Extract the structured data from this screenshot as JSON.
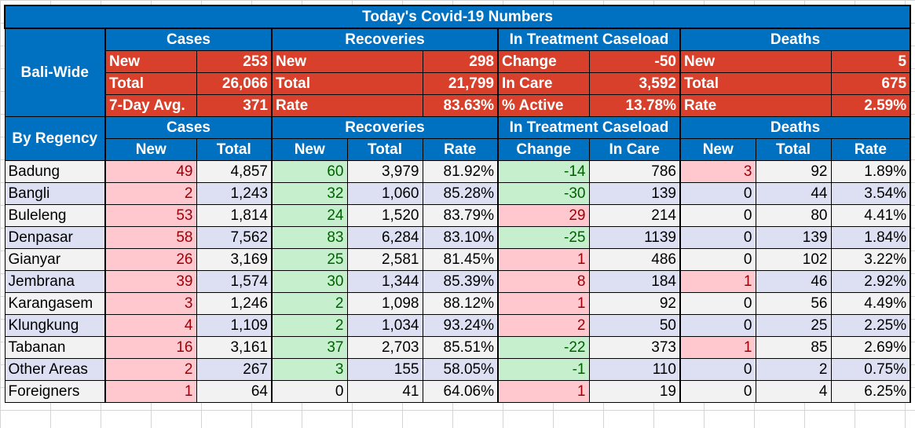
{
  "title": "Today's Covid-19 Numbers",
  "bali_wide": {
    "label": "Bali-Wide",
    "groups": [
      "Cases",
      "Recoveries",
      "In Treatment Caseload",
      "Deaths"
    ],
    "rows": [
      [
        "New",
        "253",
        "New",
        "298",
        "Change",
        "-50",
        "New",
        "5"
      ],
      [
        "Total",
        "26,066",
        "Total",
        "21,799",
        "In Care",
        "3,592",
        "Total",
        "675"
      ],
      [
        "7-Day Avg.",
        "371",
        "Rate",
        "83.63%",
        "% Active",
        "13.78%",
        "Rate",
        "2.59%"
      ]
    ]
  },
  "by_regency": {
    "label": "By Regency",
    "groups": [
      "Cases",
      "Recoveries",
      "In Treatment Caseload",
      "Deaths"
    ],
    "columns": [
      "New",
      "Total",
      "New",
      "Total",
      "Rate",
      "Change",
      "In Care",
      "New",
      "Total",
      "Rate"
    ],
    "rows": [
      [
        "Badung",
        "49",
        "4,857",
        "60",
        "3,979",
        "81.92%",
        "-14",
        "786",
        "3",
        "92",
        "1.89%"
      ],
      [
        "Bangli",
        "2",
        "1,243",
        "32",
        "1,060",
        "85.28%",
        "-30",
        "139",
        "0",
        "44",
        "3.54%"
      ],
      [
        "Buleleng",
        "53",
        "1,814",
        "24",
        "1,520",
        "83.79%",
        "29",
        "214",
        "0",
        "80",
        "4.41%"
      ],
      [
        "Denpasar",
        "58",
        "7,562",
        "83",
        "6,284",
        "83.10%",
        "-25",
        "1139",
        "0",
        "139",
        "1.84%"
      ],
      [
        "Gianyar",
        "26",
        "3,169",
        "25",
        "2,581",
        "81.45%",
        "1",
        "486",
        "0",
        "102",
        "3.22%"
      ],
      [
        "Jembrana",
        "39",
        "1,574",
        "30",
        "1,344",
        "85.39%",
        "8",
        "184",
        "1",
        "46",
        "2.92%"
      ],
      [
        "Karangasem",
        "3",
        "1,246",
        "2",
        "1,098",
        "88.12%",
        "1",
        "92",
        "0",
        "56",
        "4.49%"
      ],
      [
        "Klungkung",
        "4",
        "1,109",
        "2",
        "1,034",
        "93.24%",
        "2",
        "50",
        "0",
        "25",
        "2.25%"
      ],
      [
        "Tabanan",
        "16",
        "3,161",
        "37",
        "2,703",
        "85.51%",
        "-22",
        "373",
        "1",
        "85",
        "2.69%"
      ],
      [
        "Other Areas",
        "2",
        "267",
        "3",
        "155",
        "58.05%",
        "-1",
        "110",
        "0",
        "2",
        "0.75%"
      ],
      [
        "Foreigners",
        "1",
        "64",
        "0",
        "41",
        "64.06%",
        "1",
        "19",
        "0",
        "4",
        "6.25%"
      ]
    ]
  },
  "colors": {
    "header_blue": "#0070c0",
    "summary_red": "#d9402b",
    "highlight_pink": "#ffc7ce",
    "highlight_green": "#c6efce",
    "row_alt": "#dce0f2"
  }
}
